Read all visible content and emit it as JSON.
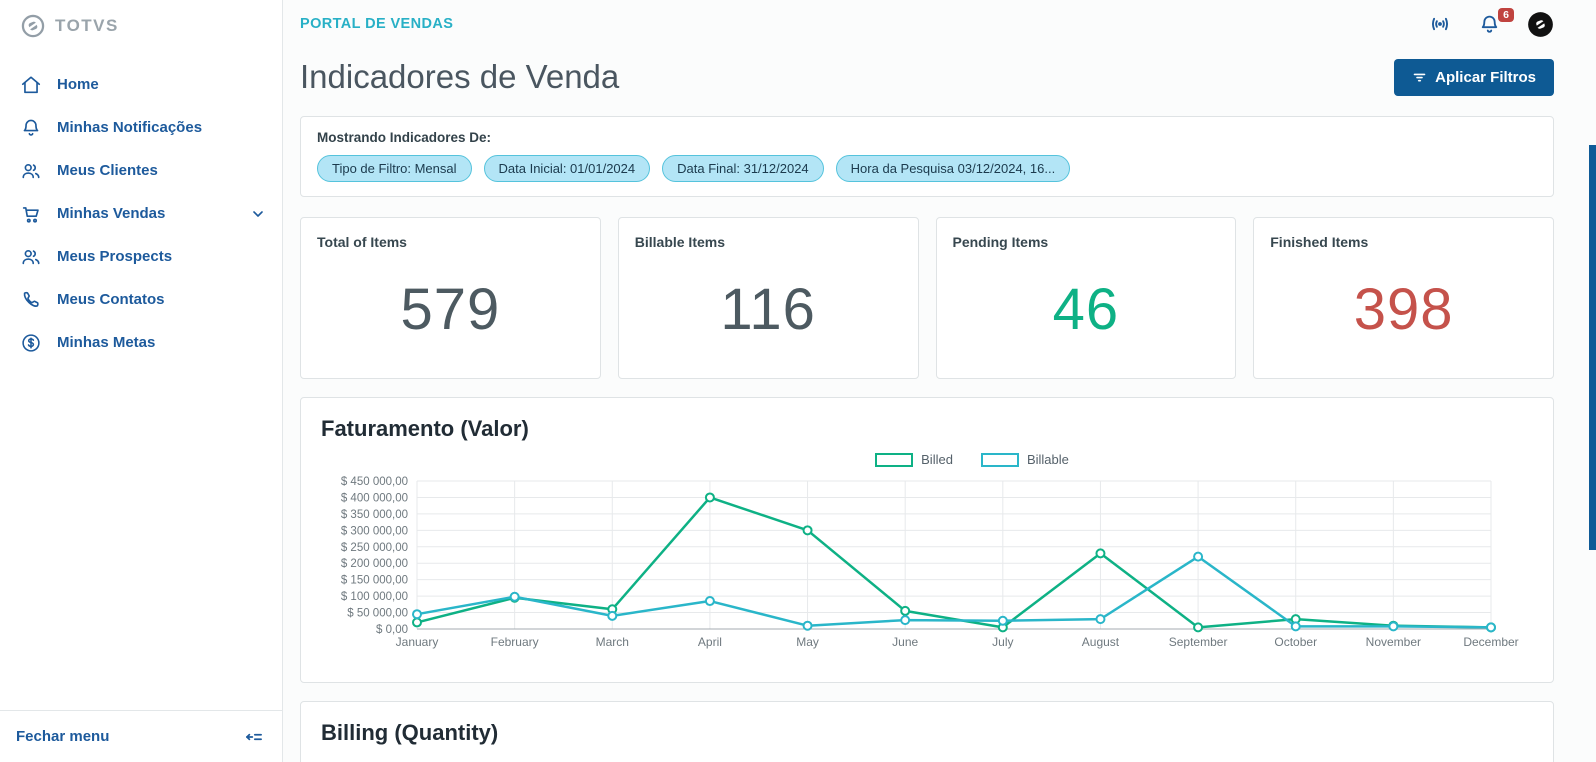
{
  "topbar": {
    "portal_title": "PORTAL DE VENDAS",
    "notification_badge": "6"
  },
  "sidebar": {
    "logo_text": "TOTVS",
    "items": [
      {
        "label": "Home",
        "icon": "home-icon"
      },
      {
        "label": "Minhas Notificações",
        "icon": "bell-icon"
      },
      {
        "label": "Meus Clientes",
        "icon": "users-icon"
      },
      {
        "label": "Minhas Vendas",
        "icon": "cart-icon",
        "expandable": true
      },
      {
        "label": "Meus Prospects",
        "icon": "users-icon"
      },
      {
        "label": "Meus Contatos",
        "icon": "phone-icon"
      },
      {
        "label": "Minhas Metas",
        "icon": "dollar-icon"
      }
    ],
    "footer_label": "Fechar menu"
  },
  "page": {
    "title": "Indicadores de Venda",
    "apply_filters_label": "Aplicar Filtros"
  },
  "filters": {
    "heading": "Mostrando Indicadores De:",
    "chips": [
      "Tipo de Filtro: Mensal",
      "Data Inicial: 01/01/2024",
      "Data Final: 31/12/2024",
      "Hora da Pesquisa 03/12/2024, 16..."
    ]
  },
  "stat_cards": [
    {
      "label": "Total of Items",
      "value": "579",
      "color": "#4d5a61"
    },
    {
      "label": "Billable Items",
      "value": "116",
      "color": "#4d5a61"
    },
    {
      "label": "Pending Items",
      "value": "46",
      "color": "#0eb185"
    },
    {
      "label": "Finished Items",
      "value": "398",
      "color": "#c5524b"
    }
  ],
  "colors": {
    "primary_button": "#0e5a94",
    "portal_accent": "#28b0c6",
    "sidebar_text": "#1d5a9c",
    "badge_red": "#c0433f"
  },
  "chart_data": [
    {
      "type": "line",
      "title": "Faturamento (Valor)",
      "categories": [
        "January",
        "February",
        "March",
        "April",
        "May",
        "June",
        "July",
        "August",
        "September",
        "October",
        "November",
        "December"
      ],
      "series": [
        {
          "name": "Billed",
          "color": "#0eb185",
          "values": [
            20000,
            95000,
            60000,
            400000,
            300000,
            55000,
            5000,
            230000,
            5000,
            30000,
            10000,
            5000
          ]
        },
        {
          "name": "Billable",
          "color": "#2ab6c9",
          "values": [
            45000,
            98000,
            40000,
            85000,
            10000,
            27000,
            25000,
            30000,
            220000,
            8000,
            8000,
            5000
          ]
        }
      ],
      "ylim": [
        0,
        450000
      ],
      "ytick_step": 50000,
      "ytick_format": "$ {n},00",
      "grid": true,
      "legend_position": "top-center"
    },
    {
      "type": "line",
      "title": "Billing (Quantity)"
    }
  ]
}
